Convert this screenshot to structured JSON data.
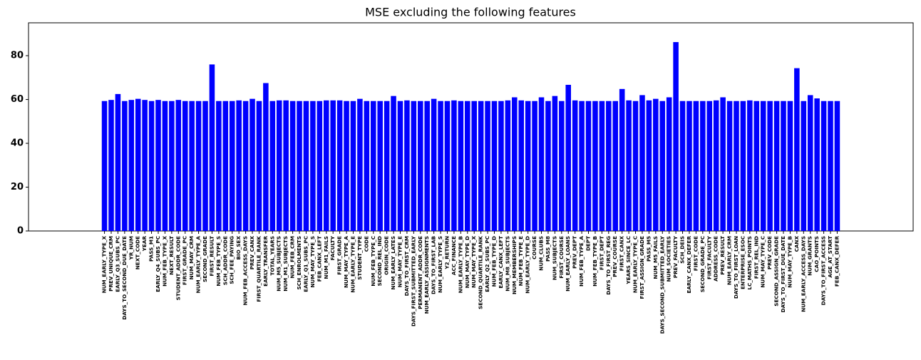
{
  "chart_data": {
    "type": "bar",
    "title": "MSE excluding the following features",
    "color": "#0000ff",
    "categories": [
      "NUM_EARLY_TYPE_X",
      "PREV_UNIQUE_CRM",
      "EARLY_Q3_SUBS_PC",
      "DAYS_TO_SECOND_DUE_DATE",
      "YR_NUM",
      "NEXT_CODE",
      "YEAR",
      "PASS_M1",
      "EARLY_Q4_SUBS_PC",
      "NUM_FEB_TYPE_X",
      "NEXT_RESULT",
      "STUDENT_ADDR_CODE",
      "FIRST_GRADE_PC",
      "NUM_MAY_CRM",
      "NUM_EARLY_TYPE_A",
      "SECOND_GRADE",
      "FIRST_RESULT",
      "NUM_FEB_TYPE_S",
      "SCH_ADDR_CODE",
      "SCH_FEE_PAYING",
      "BIO_SEX",
      "NUM_FEB_ACCESS_DAYS",
      "PREV_CANX",
      "FIRST_QUARTILE_RANK",
      "EARLY_TRANSFER",
      "TOTAL_YEARS",
      "NUM_M5_SUBJECTS",
      "NUM_M1_SUBJECTS",
      "NUM_FEB_CRM",
      "SCH_ENROLMENTS",
      "EARLY_Q1_SUBS_PC",
      "NUM_MAY_TYPE_S",
      "FEB_CANX_LEFT",
      "NUM_M1_FAILS",
      "FACULTY",
      "FIRST_GRADE",
      "NUM_MAY_TYPE_A",
      "NUM_EARLY_TYPE_E",
      "STUDENT_TYPE",
      "CODE",
      "NUM_FEB_TYPE_C",
      "SECOND_REL_IND",
      "ORIGIN_CODE",
      "NUM_EARLY_LATES",
      "NUM_MAY_TYPE_E",
      "DAYS_TO_FIRST_CRM",
      "DAYS_FIRST_SUBMITTED_EARLY",
      "PERMANENT_ADDR_CODE",
      "NUM_EARLY_ASSIGNMENTS",
      "DAYS_TO_FIRST_LAB",
      "NUM_EARLY_TYPE_S",
      "Y2_RETURN",
      "ACC_FINANCE",
      "NUM_EARLY_TYPE_B",
      "NUM_MAY_TYPE_D",
      "NUM_MAY_TYPE_X",
      "SECOND_QUARTILE_RANK",
      "EARLY_Q2_SUBS_PC",
      "NUM_FEB_TYPE_D",
      "EARLY_CANX_LEFT",
      "NUM_M8_SUBJECTS",
      "NUM_MEMBERSHIPS",
      "NUM_FEB_TYPE_E",
      "NUM_EARLY_TYPE_D",
      "COURSE",
      "NUM_CLUBS",
      "PASS_M8",
      "NUM_SUBJECTS",
      "FIRST_COURSE",
      "NUM_EARLY_LOANS",
      "PREV_DEPT",
      "NUM_FEB_TYPE_A",
      "DEPT",
      "NUM_FEB_TYPE_B",
      "FIRST_DEPT",
      "DAYS_TO_FIRST_REG",
      "PREV_COURSE",
      "FIRST_CANX",
      "YEARS_SINCE_LC",
      "NUM_EARLY_TYPE_C",
      "FIRST_ASSIGN_GRADE",
      "PASS_M5",
      "NUM_M5_FAILS",
      "DAYS_SECOND_SUBMITTED_EARLY",
      "NUM_SOCIETIES",
      "PREV_FACULTY",
      "SCH_DEIS",
      "EARLY_CANX_DEFER",
      "FIRST_CODE",
      "SECOND_GRADE_PC",
      "FIRST_FACULTY",
      "ADDRESS_CODE",
      "PREV_RESULT",
      "NUM_EARLY_CRM",
      "DAYS_TO_FIRST_LOAN",
      "ENTERPRISE_ESOC",
      "LC_MATHS_POINTS",
      "FIRST_REL_IND",
      "NUM_MAY_TYPE_C",
      "PREV_CODE",
      "SECOND_ASSIGN_GRADE",
      "DAYS_TO_FIRST_DUE_DATE",
      "NUM_MAY_TYPE_B",
      "CANX",
      "NUM_EARLY_ACCESS_DAYS",
      "NUM_GRANTS",
      "CAO_POINTS",
      "DAYS_TO_FIRST_ACCESS",
      "AGE_AT_START",
      "FEB_CANX_DEFER"
    ],
    "values": [
      59.3,
      59.8,
      62.5,
      59.3,
      59.8,
      60.3,
      59.8,
      59.3,
      59.8,
      59.3,
      59.3,
      59.8,
      59.3,
      59.3,
      59.3,
      59.3,
      76,
      59.3,
      59.3,
      59.3,
      59.6,
      59.3,
      60.3,
      59.3,
      67.5,
      59.3,
      59.6,
      59.6,
      59.3,
      59.3,
      59.3,
      59.3,
      59.3,
      59.6,
      59.6,
      59.6,
      59.3,
      59.3,
      60.3,
      59.3,
      59.3,
      59.3,
      59.3,
      61.6,
      59.3,
      59.6,
      59.3,
      59.3,
      59.3,
      60.3,
      59.3,
      59.3,
      59.6,
      59.3,
      59.3,
      59.3,
      59.3,
      59.3,
      59.3,
      59.3,
      59.6,
      61,
      59.6,
      59.3,
      59.3,
      61,
      59.3,
      61.6,
      59.3,
      66.7,
      59.6,
      59.3,
      59.3,
      59.3,
      59.3,
      59.3,
      59.3,
      64.8,
      59.6,
      59.3,
      62,
      59.6,
      60.3,
      59.3,
      61,
      86.2,
      59.3,
      59.3,
      59.3,
      59.3,
      59.3,
      59.6,
      61,
      59.3,
      59.3,
      59.3,
      59.6,
      59.3,
      59.3,
      59.3,
      59.3,
      59.3,
      59.3,
      74.3,
      59.3,
      62,
      60.5,
      59.3,
      59.3,
      59.3
    ],
    "ylim": [
      0,
      95
    ],
    "yticks": [
      0,
      20,
      40,
      60,
      80
    ],
    "grid": false
  }
}
